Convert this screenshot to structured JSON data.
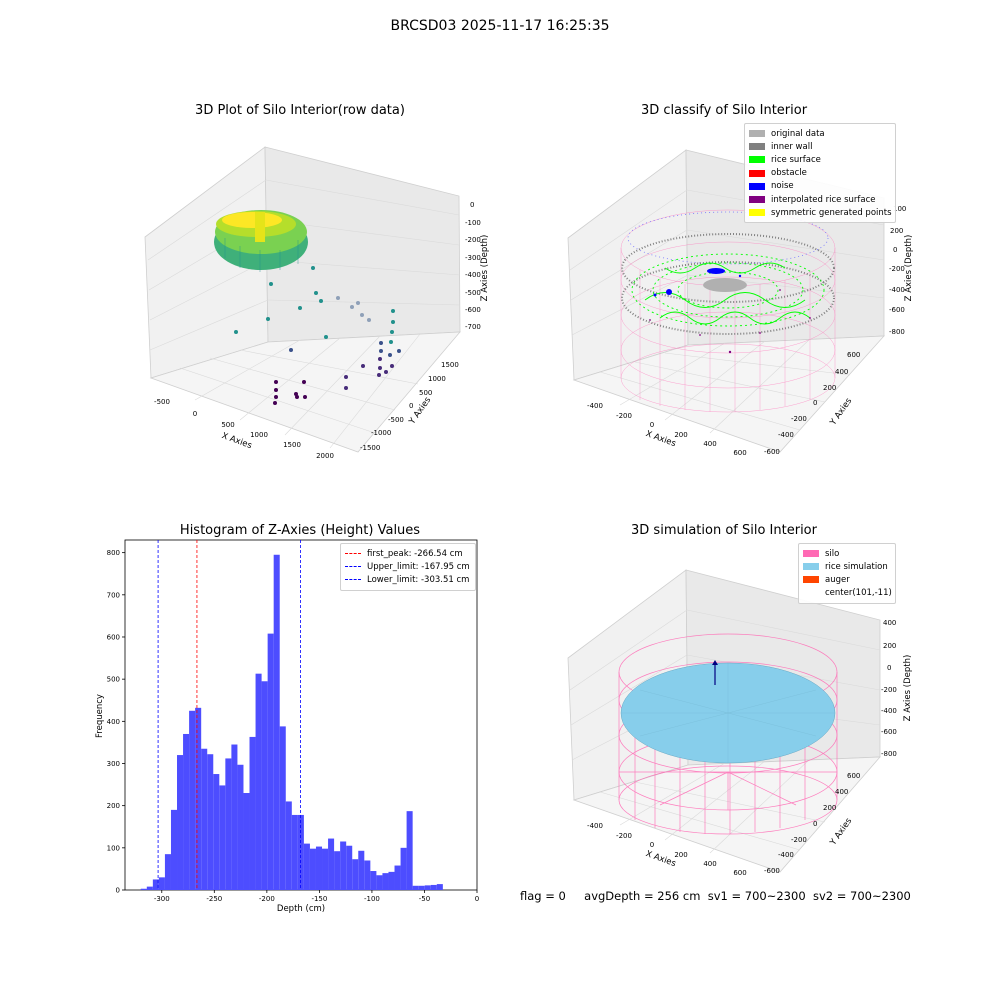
{
  "suptitle": "BRCSD03 2025-11-17 16:25:35",
  "status": {
    "flag": "flag = 0",
    "avg_depth": "avgDepth = 256 cm",
    "sv1": "sv1 = 700~2300",
    "sv2": "sv2 = 700~2300"
  },
  "colors": {
    "hist_bar": "#4d4dff",
    "peak_line": "#ff0000",
    "limit_line": "#0000ff",
    "rice_surface": "#00ff00",
    "silo_wire": "#ff69b4",
    "rice_sim": "#87ceeb"
  },
  "chart_data": [
    {
      "type": "scatter",
      "panel": "top-left",
      "projection": "3d",
      "title": "3D Plot of Silo Interior(row data)",
      "xlabel": "X Axies",
      "ylabel": "Y Axies",
      "zlabel": "Z Axies (Depth)",
      "x_ticks": [
        "-500",
        "0",
        "500",
        "1000",
        "1500",
        "2000"
      ],
      "y_ticks": [
        "1500",
        "1000",
        "500",
        "0",
        "-500",
        "-1000",
        "-1500"
      ],
      "z_ticks": [
        "0",
        "-100",
        "-200",
        "-300",
        "-400",
        "-500",
        "-600",
        "-700"
      ],
      "colormap": "viridis"
    },
    {
      "type": "scatter",
      "panel": "top-right",
      "projection": "3d",
      "title": "3D classify of Silo Interior",
      "xlabel": "X Axies",
      "ylabel": "Y Axies",
      "zlabel": "Z Axies (Depth)",
      "x_ticks": [
        "-400",
        "-200",
        "0",
        "200",
        "400",
        "600"
      ],
      "y_ticks": [
        "600",
        "400",
        "200",
        "0",
        "-200",
        "-400",
        "-600"
      ],
      "z_ticks": [
        "200",
        "0",
        "-200",
        "-400",
        "-600",
        "-800"
      ],
      "z_tick_partial": "100",
      "legend_position": "upper right",
      "legend": [
        {
          "label": "original data",
          "color": "#b0b0b0"
        },
        {
          "label": "inner wall",
          "color": "#808080"
        },
        {
          "label": "rice surface",
          "color": "#00ff00"
        },
        {
          "label": "obstacle",
          "color": "#ff0000"
        },
        {
          "label": "noise",
          "color": "#0000ff"
        },
        {
          "label": "interpolated rice surface",
          "color": "#800080"
        },
        {
          "label": "symmetric generated points",
          "color": "#ffff00"
        }
      ]
    },
    {
      "type": "bar",
      "panel": "bottom-left",
      "title": "Histogram of Z-Axies (Height) Values",
      "xlabel": "Depth (cm)",
      "ylabel": "Frequency",
      "xlim": [
        -335,
        0
      ],
      "ylim": [
        0,
        830
      ],
      "x_ticks": [
        -300,
        -250,
        -200,
        -150,
        -100,
        -50,
        0
      ],
      "y_ticks": [
        0,
        100,
        200,
        300,
        400,
        500,
        600,
        700,
        800
      ],
      "bin_width": 5.75,
      "bin_start": -320,
      "values": [
        3,
        8,
        25,
        30,
        85,
        190,
        320,
        370,
        425,
        432,
        335,
        322,
        275,
        248,
        312,
        345,
        297,
        230,
        363,
        513,
        495,
        608,
        795,
        388,
        210,
        178,
        178,
        110,
        98,
        103,
        98,
        122,
        92,
        115,
        105,
        73,
        93,
        70,
        45,
        35,
        40,
        43,
        58,
        100,
        187,
        10,
        10,
        11,
        12,
        14
      ],
      "vlines": [
        {
          "label": "first_peak: -266.54 cm",
          "value": -266.54,
          "color": "#ff0000"
        },
        {
          "label": "Upper_limit: -167.95 cm",
          "value": -167.95,
          "color": "#0000ff"
        },
        {
          "label": "Lower_limit: -303.51 cm",
          "value": -303.51,
          "color": "#0000ff"
        }
      ],
      "legend_position": "upper right",
      "grid": false
    },
    {
      "type": "scatter",
      "panel": "bottom-right",
      "projection": "3d",
      "title": "3D simulation of Silo Interior",
      "xlabel": "X Axies",
      "ylabel": "Y Axies",
      "zlabel": "Z Axies (Depth)",
      "x_ticks": [
        "-400",
        "-200",
        "0",
        "200",
        "400",
        "600"
      ],
      "y_ticks": [
        "600",
        "400",
        "200",
        "0",
        "-200",
        "-400",
        "-600"
      ],
      "z_ticks": [
        "400",
        "200",
        "0",
        "-200",
        "-400",
        "-600",
        "-800"
      ],
      "legend_position": "upper right",
      "legend": [
        {
          "label": "silo",
          "color": "#ff69b4"
        },
        {
          "label": "rice simulation",
          "color": "#87ceeb"
        },
        {
          "label": "auger",
          "color": "#ff4500"
        },
        {
          "label": "center(101,-11)",
          "color": "#ffffff"
        }
      ]
    }
  ]
}
